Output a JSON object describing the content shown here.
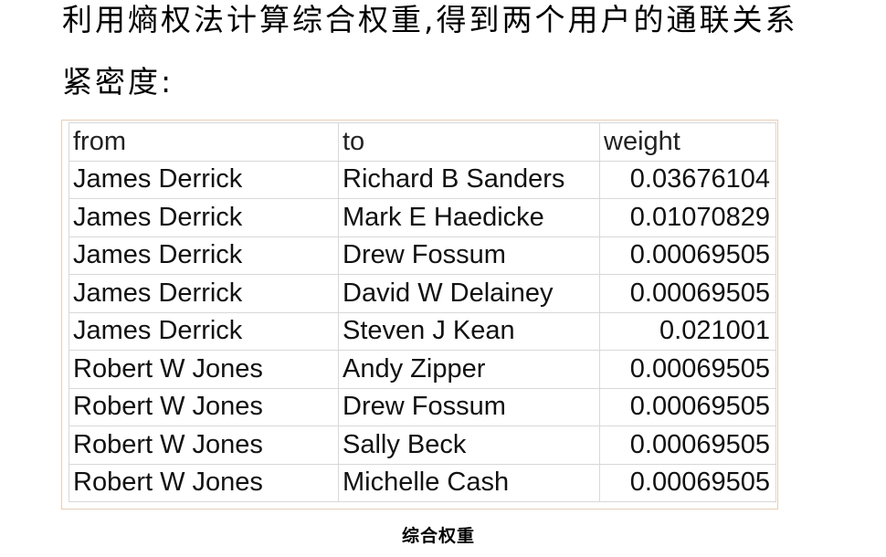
{
  "paragraph": {
    "line1": "利用熵权法计算综合权重,得到两个用户的通联关系",
    "line2": "紧密度:"
  },
  "table": {
    "columns": [
      "from",
      "to",
      "weight"
    ],
    "rows": [
      [
        "James Derrick",
        "Richard B Sanders",
        "0.03676104"
      ],
      [
        "James Derrick",
        "Mark E Haedicke",
        "0.01070829"
      ],
      [
        "James Derrick",
        "Drew Fossum",
        "0.00069505"
      ],
      [
        "James Derrick",
        "David W Delainey",
        "0.00069505"
      ],
      [
        "James Derrick",
        "Steven J Kean",
        "0.021001"
      ],
      [
        "Robert W Jones",
        "Andy Zipper",
        "0.00069505"
      ],
      [
        "Robert W Jones",
        "Drew Fossum",
        "0.00069505"
      ],
      [
        "Robert W Jones",
        "Sally Beck",
        "0.00069505"
      ],
      [
        "Robert W Jones",
        "Michelle Cash",
        "0.00069505"
      ]
    ]
  },
  "caption": "综合权重"
}
